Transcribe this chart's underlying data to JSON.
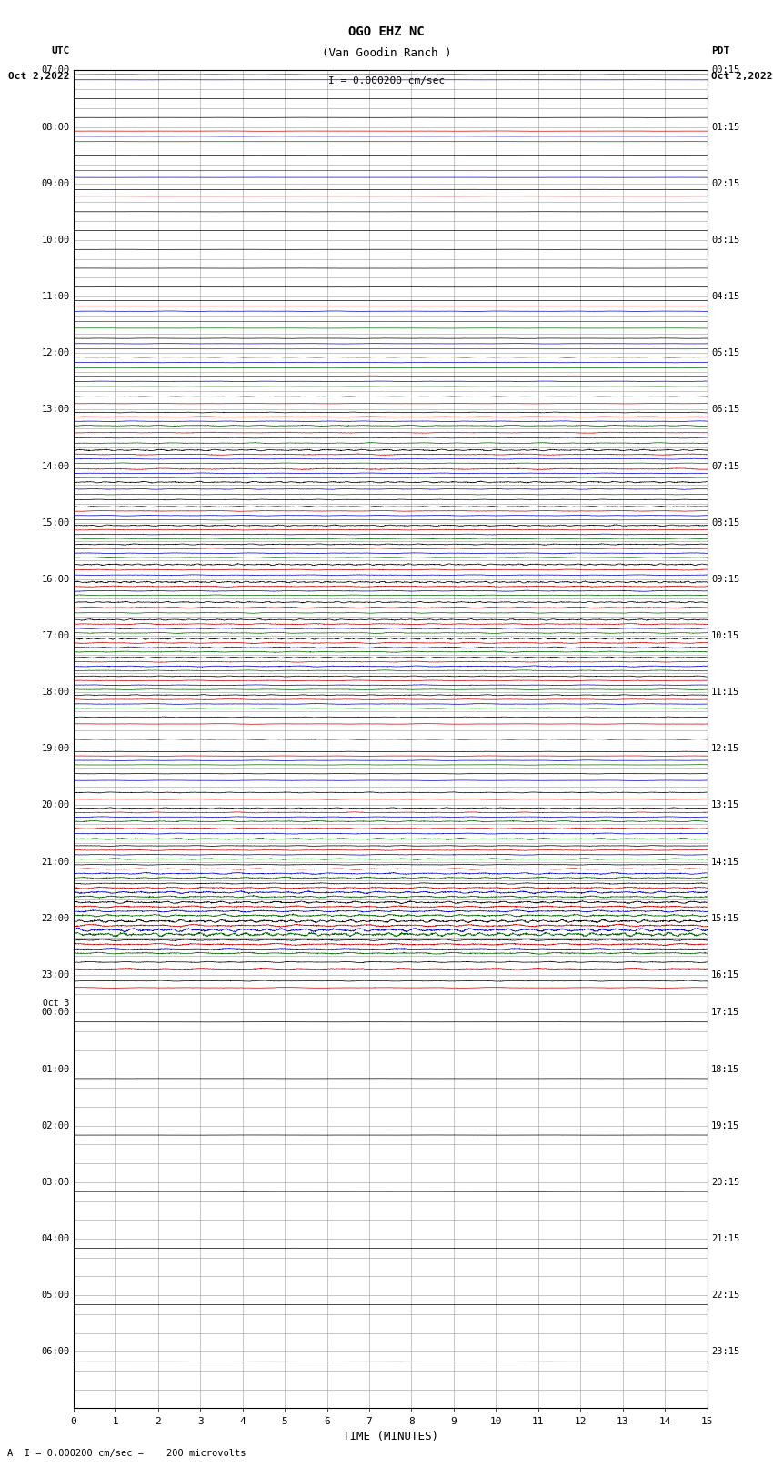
{
  "title_line1": "OGO EHZ NC",
  "title_line2": "(Van Goodin Ranch )",
  "scale_label": "I = 0.000200 cm/sec",
  "bottom_label": "A  I = 0.000200 cm/sec =    200 microvolts",
  "left_header_line1": "UTC",
  "left_header_line2": "Oct 2,2022",
  "right_header_line1": "PDT",
  "right_header_line2": "Oct 2,2022",
  "xlabel": "TIME (MINUTES)",
  "bg_color": "#ffffff",
  "grid_color": "#999999",
  "n_minutes": 15,
  "row_defs": [
    {
      "utc": "07:00",
      "pdt": "00:15",
      "traces": [
        {
          "color": "#000000",
          "amp": 0.015,
          "freq": 0.5
        },
        {
          "color": "#0000cc",
          "amp": 0.008,
          "freq": 0.3
        },
        {
          "color": "#006600",
          "amp": 0.008,
          "freq": 0.3
        }
      ]
    },
    {
      "utc": "",
      "pdt": "",
      "traces": [
        {
          "color": "#000000",
          "amp": 0.012,
          "freq": 0.5
        }
      ]
    },
    {
      "utc": "",
      "pdt": "",
      "traces": [
        {
          "color": "#000000",
          "amp": 0.01,
          "freq": 0.3
        }
      ]
    },
    {
      "utc": "08:00",
      "pdt": "01:15",
      "traces": [
        {
          "color": "#cc0000",
          "amp": 0.015,
          "freq": 0.3
        },
        {
          "color": "#0000cc",
          "amp": 0.012,
          "freq": 0.3
        },
        {
          "color": "#006600",
          "amp": 0.008,
          "freq": 0.3
        }
      ]
    },
    {
      "utc": "",
      "pdt": "",
      "traces": [
        {
          "color": "#000000",
          "amp": 0.01,
          "freq": 0.3
        }
      ]
    },
    {
      "utc": "",
      "pdt": "",
      "traces": [
        {
          "color": "#cc0000",
          "amp": 0.008,
          "freq": 0.2
        },
        {
          "color": "#0000cc",
          "amp": 0.008,
          "freq": 0.2
        }
      ]
    },
    {
      "utc": "09:00",
      "pdt": "02:15",
      "traces": [
        {
          "color": "#000000",
          "amp": 0.01,
          "freq": 0.3
        },
        {
          "color": "#cc0000",
          "amp": 0.008,
          "freq": 0.2
        }
      ]
    },
    {
      "utc": "",
      "pdt": "",
      "traces": [
        {
          "color": "#000000",
          "amp": 0.01,
          "freq": 0.3
        }
      ]
    },
    {
      "utc": "",
      "pdt": "",
      "traces": [
        {
          "color": "#000000",
          "amp": 0.01,
          "freq": 0.3
        }
      ]
    },
    {
      "utc": "10:00",
      "pdt": "03:15",
      "traces": [
        {
          "color": "#000000",
          "amp": 0.01,
          "freq": 0.3
        }
      ]
    },
    {
      "utc": "",
      "pdt": "",
      "traces": [
        {
          "color": "#000000",
          "amp": 0.01,
          "freq": 0.2
        }
      ]
    },
    {
      "utc": "",
      "pdt": "",
      "traces": [
        {
          "color": "#000000",
          "amp": 0.01,
          "freq": 0.2
        }
      ]
    },
    {
      "utc": "11:00",
      "pdt": "04:15",
      "traces": [
        {
          "color": "#000000",
          "amp": 0.01,
          "freq": 0.2
        },
        {
          "color": "#cc0000",
          "amp": 0.008,
          "freq": 0.2
        },
        {
          "color": "#0000cc",
          "amp": 0.025,
          "freq": 0.5
        }
      ]
    },
    {
      "utc": "",
      "pdt": "",
      "traces": [
        {
          "color": "#cc0000",
          "amp": 0.008,
          "freq": 0.2
        },
        {
          "color": "#006600",
          "amp": 0.012,
          "freq": 0.3
        }
      ]
    },
    {
      "utc": "",
      "pdt": "",
      "traces": [
        {
          "color": "#000000",
          "amp": 0.02,
          "freq": 0.5
        },
        {
          "color": "#0000cc",
          "amp": 0.02,
          "freq": 0.4
        },
        {
          "color": "#006600",
          "amp": 0.01,
          "freq": 0.3
        }
      ]
    },
    {
      "utc": "12:00",
      "pdt": "05:15",
      "traces": [
        {
          "color": "#000000",
          "amp": 0.03,
          "freq": 0.8
        },
        {
          "color": "#0000cc",
          "amp": 0.025,
          "freq": 0.5
        },
        {
          "color": "#006600",
          "amp": 0.015,
          "freq": 0.4
        }
      ]
    },
    {
      "utc": "",
      "pdt": "",
      "traces": [
        {
          "color": "#cc0000",
          "amp": 0.025,
          "freq": 0.4
        },
        {
          "color": "#0000cc",
          "amp": 0.025,
          "freq": 0.5
        },
        {
          "color": "#006600",
          "amp": 0.015,
          "freq": 0.4
        }
      ]
    },
    {
      "utc": "",
      "pdt": "",
      "traces": [
        {
          "color": "#000000",
          "amp": 0.03,
          "freq": 0.8
        },
        {
          "color": "#cc0000",
          "amp": 0.02,
          "freq": 0.4
        }
      ]
    },
    {
      "utc": "13:00",
      "pdt": "06:15",
      "traces": [
        {
          "color": "#000000",
          "amp": 0.04,
          "freq": 1.0
        },
        {
          "color": "#cc0000",
          "amp": 0.03,
          "freq": 0.5
        },
        {
          "color": "#0000cc",
          "amp": 0.035,
          "freq": 0.6
        },
        {
          "color": "#006600",
          "amp": 0.06,
          "freq": 0.8
        }
      ]
    },
    {
      "utc": "",
      "pdt": "",
      "traces": [
        {
          "color": "#cc0000",
          "amp": 0.05,
          "freq": 0.5
        },
        {
          "color": "#0000cc",
          "amp": 0.04,
          "freq": 0.6
        },
        {
          "color": "#006600",
          "amp": 0.05,
          "freq": 0.7
        }
      ]
    },
    {
      "utc": "",
      "pdt": "",
      "traces": [
        {
          "color": "#000000",
          "amp": 0.08,
          "freq": 1.5
        },
        {
          "color": "#cc0000",
          "amp": 0.06,
          "freq": 0.5
        },
        {
          "color": "#0000cc",
          "amp": 0.04,
          "freq": 0.5
        },
        {
          "color": "#006600",
          "amp": 0.04,
          "freq": 0.5
        }
      ]
    },
    {
      "utc": "14:00",
      "pdt": "07:15",
      "traces": [
        {
          "color": "#cc0000",
          "amp": 0.07,
          "freq": 0.5
        },
        {
          "color": "#0000cc",
          "amp": 0.04,
          "freq": 0.5
        },
        {
          "color": "#006600",
          "amp": 0.04,
          "freq": 0.5
        },
        {
          "color": "#000000",
          "amp": 0.08,
          "freq": 1.5
        }
      ]
    },
    {
      "utc": "",
      "pdt": "",
      "traces": [
        {
          "color": "#0000cc",
          "amp": 0.04,
          "freq": 0.8
        },
        {
          "color": "#006600",
          "amp": 0.03,
          "freq": 0.6
        },
        {
          "color": "#000000",
          "amp": 0.04,
          "freq": 1.0
        }
      ]
    },
    {
      "utc": "",
      "pdt": "",
      "traces": [
        {
          "color": "#000000",
          "amp": 0.05,
          "freq": 1.2
        },
        {
          "color": "#cc0000",
          "amp": 0.04,
          "freq": 0.5
        },
        {
          "color": "#0000cc",
          "amp": 0.035,
          "freq": 0.6
        },
        {
          "color": "#006600",
          "amp": 0.03,
          "freq": 0.5
        }
      ]
    },
    {
      "utc": "15:00",
      "pdt": "08:15",
      "traces": [
        {
          "color": "#000000",
          "amp": 0.07,
          "freq": 1.5
        },
        {
          "color": "#cc0000",
          "amp": 0.04,
          "freq": 0.5
        },
        {
          "color": "#0000cc",
          "amp": 0.04,
          "freq": 0.6
        },
        {
          "color": "#006600",
          "amp": 0.04,
          "freq": 0.6
        }
      ]
    },
    {
      "utc": "",
      "pdt": "",
      "traces": [
        {
          "color": "#000000",
          "amp": 0.06,
          "freq": 1.2
        },
        {
          "color": "#cc0000",
          "amp": 0.04,
          "freq": 0.5
        },
        {
          "color": "#0000cc",
          "amp": 0.04,
          "freq": 0.5
        },
        {
          "color": "#006600",
          "amp": 0.04,
          "freq": 0.5
        }
      ]
    },
    {
      "utc": "",
      "pdt": "",
      "traces": [
        {
          "color": "#000000",
          "amp": 0.08,
          "freq": 2.0
        },
        {
          "color": "#cc0000",
          "amp": 0.05,
          "freq": 0.6
        },
        {
          "color": "#0000cc",
          "amp": 0.04,
          "freq": 0.5
        }
      ]
    },
    {
      "utc": "16:00",
      "pdt": "09:15",
      "traces": [
        {
          "color": "#000000",
          "amp": 0.09,
          "freq": 2.5
        },
        {
          "color": "#cc0000",
          "amp": 0.06,
          "freq": 0.6
        },
        {
          "color": "#0000cc",
          "amp": 0.05,
          "freq": 0.6
        },
        {
          "color": "#006600",
          "amp": 0.04,
          "freq": 0.6
        }
      ]
    },
    {
      "utc": "",
      "pdt": "",
      "traces": [
        {
          "color": "#000000",
          "amp": 0.07,
          "freq": 2.0
        },
        {
          "color": "#cc0000",
          "amp": 0.06,
          "freq": 0.7
        },
        {
          "color": "#006600",
          "amp": 0.05,
          "freq": 0.7
        }
      ]
    },
    {
      "utc": "",
      "pdt": "",
      "traces": [
        {
          "color": "#000000",
          "amp": 0.07,
          "freq": 2.0
        },
        {
          "color": "#cc0000",
          "amp": 0.06,
          "freq": 0.7
        },
        {
          "color": "#0000cc",
          "amp": 0.05,
          "freq": 0.7
        },
        {
          "color": "#006600",
          "amp": 0.05,
          "freq": 0.7
        }
      ]
    },
    {
      "utc": "17:00",
      "pdt": "10:15",
      "traces": [
        {
          "color": "#000000",
          "amp": 0.09,
          "freq": 2.5
        },
        {
          "color": "#cc0000",
          "amp": 0.06,
          "freq": 0.7
        },
        {
          "color": "#0000cc",
          "amp": 0.07,
          "freq": 0.8
        },
        {
          "color": "#006600",
          "amp": 0.06,
          "freq": 0.7
        }
      ]
    },
    {
      "utc": "",
      "pdt": "",
      "traces": [
        {
          "color": "#000000",
          "amp": 0.06,
          "freq": 1.5
        },
        {
          "color": "#cc0000",
          "amp": 0.05,
          "freq": 0.6
        },
        {
          "color": "#0000cc",
          "amp": 0.06,
          "freq": 0.7
        },
        {
          "color": "#006600",
          "amp": 0.05,
          "freq": 0.6
        }
      ]
    },
    {
      "utc": "",
      "pdt": "",
      "traces": [
        {
          "color": "#000000",
          "amp": 0.05,
          "freq": 1.2
        },
        {
          "color": "#cc0000",
          "amp": 0.04,
          "freq": 0.5
        },
        {
          "color": "#0000cc",
          "amp": 0.04,
          "freq": 0.5
        },
        {
          "color": "#006600",
          "amp": 0.04,
          "freq": 0.5
        }
      ]
    },
    {
      "utc": "18:00",
      "pdt": "11:15",
      "traces": [
        {
          "color": "#000000",
          "amp": 0.05,
          "freq": 1.2
        },
        {
          "color": "#cc0000",
          "amp": 0.04,
          "freq": 0.5
        },
        {
          "color": "#0000cc",
          "amp": 0.04,
          "freq": 0.5
        },
        {
          "color": "#006600",
          "amp": 0.04,
          "freq": 0.5
        }
      ]
    },
    {
      "utc": "",
      "pdt": "",
      "traces": [
        {
          "color": "#000000",
          "amp": 0.04,
          "freq": 1.0
        },
        {
          "color": "#cc0000",
          "amp": 0.03,
          "freq": 0.4
        }
      ]
    },
    {
      "utc": "",
      "pdt": "",
      "traces": [
        {
          "color": "#000000",
          "amp": 0.03,
          "freq": 0.8
        }
      ]
    },
    {
      "utc": "19:00",
      "pdt": "12:15",
      "traces": [
        {
          "color": "#000000",
          "amp": 0.03,
          "freq": 0.6
        },
        {
          "color": "#cc0000",
          "amp": 0.025,
          "freq": 0.4
        },
        {
          "color": "#0000cc",
          "amp": 0.03,
          "freq": 0.5
        },
        {
          "color": "#006600",
          "amp": 0.025,
          "freq": 0.4
        }
      ]
    },
    {
      "utc": "",
      "pdt": "",
      "traces": [
        {
          "color": "#000000",
          "amp": 0.03,
          "freq": 0.6
        },
        {
          "color": "#0000cc",
          "amp": 0.025,
          "freq": 0.4
        }
      ]
    },
    {
      "utc": "",
      "pdt": "",
      "traces": [
        {
          "color": "#000000",
          "amp": 0.05,
          "freq": 1.0
        },
        {
          "color": "#cc0000",
          "amp": 0.03,
          "freq": 0.5
        }
      ]
    },
    {
      "utc": "20:00",
      "pdt": "13:15",
      "traces": [
        {
          "color": "#000000",
          "amp": 0.06,
          "freq": 1.5
        },
        {
          "color": "#cc0000",
          "amp": 0.05,
          "freq": 0.7
        },
        {
          "color": "#0000cc",
          "amp": 0.04,
          "freq": 0.6
        },
        {
          "color": "#006600",
          "amp": 0.07,
          "freq": 0.9
        }
      ]
    },
    {
      "utc": "",
      "pdt": "",
      "traces": [
        {
          "color": "#cc0000",
          "amp": 0.06,
          "freq": 0.6
        },
        {
          "color": "#0000cc",
          "amp": 0.05,
          "freq": 0.6
        },
        {
          "color": "#006600",
          "amp": 0.08,
          "freq": 1.0
        }
      ]
    },
    {
      "utc": "",
      "pdt": "",
      "traces": [
        {
          "color": "#000000",
          "amp": 0.04,
          "freq": 0.8
        },
        {
          "color": "#cc0000",
          "amp": 0.05,
          "freq": 0.6
        },
        {
          "color": "#0000cc",
          "amp": 0.04,
          "freq": 0.5
        },
        {
          "color": "#006600",
          "amp": 0.07,
          "freq": 0.9
        }
      ]
    },
    {
      "utc": "21:00",
      "pdt": "14:15",
      "traces": [
        {
          "color": "#000000",
          "amp": 0.04,
          "freq": 0.6
        },
        {
          "color": "#cc0000",
          "amp": 0.07,
          "freq": 0.7
        },
        {
          "color": "#0000cc",
          "amp": 0.08,
          "freq": 0.9
        },
        {
          "color": "#006600",
          "amp": 0.09,
          "freq": 1.0
        }
      ]
    },
    {
      "utc": "",
      "pdt": "",
      "traces": [
        {
          "color": "#000000",
          "amp": 0.06,
          "freq": 0.8
        },
        {
          "color": "#cc0000",
          "amp": 0.09,
          "freq": 0.8
        },
        {
          "color": "#0000cc",
          "amp": 0.12,
          "freq": 1.2
        },
        {
          "color": "#006600",
          "amp": 0.1,
          "freq": 1.0
        }
      ]
    },
    {
      "utc": "",
      "pdt": "",
      "traces": [
        {
          "color": "#000000",
          "amp": 0.12,
          "freq": 1.5
        },
        {
          "color": "#cc0000",
          "amp": 0.1,
          "freq": 0.8
        },
        {
          "color": "#0000cc",
          "amp": 0.1,
          "freq": 1.0
        },
        {
          "color": "#006600",
          "amp": 0.12,
          "freq": 1.2
        }
      ]
    },
    {
      "utc": "22:00",
      "pdt": "15:15",
      "traces": [
        {
          "color": "#000000",
          "amp": 0.15,
          "freq": 2.0
        },
        {
          "color": "#cc0000",
          "amp": 0.12,
          "freq": 0.8
        },
        {
          "color": "#0000cc",
          "amp": 0.18,
          "freq": 1.5
        },
        {
          "color": "#006600",
          "amp": 0.2,
          "freq": 1.8
        }
      ]
    },
    {
      "utc": "",
      "pdt": "",
      "traces": [
        {
          "color": "#000000",
          "amp": 0.08,
          "freq": 1.0
        },
        {
          "color": "#cc0000",
          "amp": 0.1,
          "freq": 0.7
        },
        {
          "color": "#0000cc",
          "amp": 0.07,
          "freq": 0.7
        },
        {
          "color": "#006600",
          "amp": 0.09,
          "freq": 0.8
        }
      ]
    },
    {
      "utc": "",
      "pdt": "",
      "traces": [
        {
          "color": "#000000",
          "amp": 0.06,
          "freq": 1.0
        },
        {
          "color": "#cc0000",
          "amp": 0.08,
          "freq": 0.6
        }
      ]
    },
    {
      "utc": "23:00",
      "pdt": "16:15",
      "traces": [
        {
          "color": "#000000",
          "amp": 0.05,
          "freq": 0.8
        },
        {
          "color": "#cc0000",
          "amp": 0.04,
          "freq": 0.4
        }
      ]
    },
    {
      "utc": "Oct 3",
      "pdt": "",
      "traces": []
    },
    {
      "utc": "00:00",
      "pdt": "17:15",
      "traces": [
        {
          "color": "#000000",
          "amp": 0.01,
          "freq": 0.2
        }
      ]
    },
    {
      "utc": "",
      "pdt": "",
      "traces": []
    },
    {
      "utc": "",
      "pdt": "",
      "traces": []
    },
    {
      "utc": "01:00",
      "pdt": "18:15",
      "traces": [
        {
          "color": "#000000",
          "amp": 0.01,
          "freq": 0.2
        }
      ]
    },
    {
      "utc": "",
      "pdt": "",
      "traces": []
    },
    {
      "utc": "",
      "pdt": "",
      "traces": []
    },
    {
      "utc": "02:00",
      "pdt": "19:15",
      "traces": [
        {
          "color": "#000000",
          "amp": 0.01,
          "freq": 0.2
        }
      ]
    },
    {
      "utc": "",
      "pdt": "",
      "traces": []
    },
    {
      "utc": "",
      "pdt": "",
      "traces": []
    },
    {
      "utc": "03:00",
      "pdt": "20:15",
      "traces": [
        {
          "color": "#000000",
          "amp": 0.01,
          "freq": 0.2
        }
      ]
    },
    {
      "utc": "",
      "pdt": "",
      "traces": []
    },
    {
      "utc": "",
      "pdt": "",
      "traces": []
    },
    {
      "utc": "04:00",
      "pdt": "21:15",
      "traces": [
        {
          "color": "#000000",
          "amp": 0.01,
          "freq": 0.2
        }
      ]
    },
    {
      "utc": "",
      "pdt": "",
      "traces": []
    },
    {
      "utc": "",
      "pdt": "",
      "traces": []
    },
    {
      "utc": "05:00",
      "pdt": "22:15",
      "traces": [
        {
          "color": "#000000",
          "amp": 0.01,
          "freq": 0.2
        }
      ]
    },
    {
      "utc": "",
      "pdt": "",
      "traces": []
    },
    {
      "utc": "",
      "pdt": "",
      "traces": []
    },
    {
      "utc": "06:00",
      "pdt": "23:15",
      "traces": [
        {
          "color": "#000000",
          "amp": 0.01,
          "freq": 0.2
        }
      ]
    },
    {
      "utc": "",
      "pdt": "",
      "traces": []
    },
    {
      "utc": "",
      "pdt": "",
      "traces": []
    }
  ]
}
